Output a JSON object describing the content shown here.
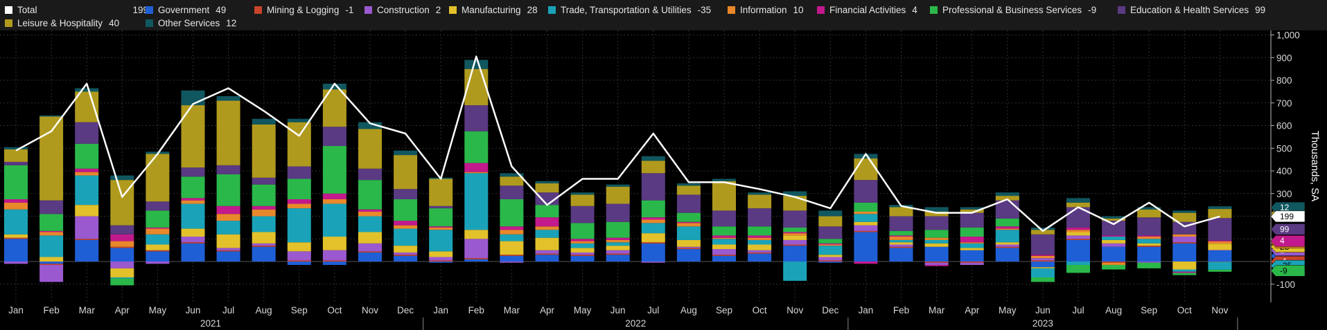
{
  "chart_data": {
    "type": "bar",
    "stacked": true,
    "ylabel": "Thousands, SA",
    "ylim": [
      -180,
      1020
    ],
    "yticks": [
      -100,
      100,
      200,
      300,
      400,
      500,
      600,
      700,
      800,
      900,
      1000
    ],
    "ytick_labels": [
      "-100",
      "100",
      "200",
      "300",
      "400",
      "500",
      "600",
      "700",
      "800",
      "900",
      "1,000"
    ],
    "grid": true,
    "legend_position": "top",
    "categories": [
      "Jan",
      "Feb",
      "Mar",
      "Apr",
      "May",
      "Jun",
      "Jul",
      "Aug",
      "Sep",
      "Oct",
      "Nov",
      "Dec",
      "Jan",
      "Feb",
      "Mar",
      "Apr",
      "May",
      "Jun",
      "Jul",
      "Aug",
      "Sep",
      "Oct",
      "Nov",
      "Dec",
      "Jan",
      "Feb",
      "Mar",
      "Apr",
      "May",
      "Jun",
      "Jul",
      "Aug",
      "Sep",
      "Oct",
      "Nov"
    ],
    "year_labels": [
      {
        "label": "2021",
        "start": 0,
        "end": 11
      },
      {
        "label": "2022",
        "start": 12,
        "end": 23
      },
      {
        "label": "2023",
        "start": 24,
        "end": 34
      }
    ],
    "total": {
      "name": "Total",
      "latest": "199",
      "color": "#ffffff",
      "values": [
        490,
        575,
        785,
        285,
        475,
        695,
        765,
        665,
        555,
        785,
        610,
        565,
        365,
        905,
        420,
        250,
        365,
        365,
        565,
        350,
        350,
        320,
        285,
        235,
        475,
        245,
        215,
        215,
        275,
        135,
        240,
        165,
        260,
        155,
        199
      ]
    },
    "series": [
      {
        "name": "Government",
        "latest": "49",
        "color": "#1f5fd6",
        "values": [
          100,
          -10,
          95,
          60,
          45,
          80,
          45,
          65,
          -15,
          -15,
          40,
          25,
          -5,
          10,
          25,
          30,
          25,
          30,
          80,
          55,
          25,
          35,
          70,
          -5,
          130,
          60,
          65,
          50,
          60,
          -25,
          95,
          65,
          65,
          80,
          49
        ]
      },
      {
        "name": "Mining & Logging",
        "latest": "-1",
        "color": "#c8442b",
        "values": [
          5,
          -5,
          5,
          5,
          5,
          5,
          5,
          5,
          5,
          5,
          5,
          5,
          5,
          5,
          5,
          5,
          5,
          5,
          5,
          5,
          5,
          5,
          5,
          5,
          5,
          5,
          -5,
          -5,
          5,
          5,
          5,
          -5,
          5,
          5,
          -1
        ]
      },
      {
        "name": "Construction",
        "latest": "2",
        "color": "#9b59d0",
        "values": [
          -10,
          -75,
          100,
          -30,
          -10,
          25,
          10,
          10,
          40,
          45,
          35,
          10,
          15,
          85,
          -5,
          15,
          10,
          15,
          -5,
          5,
          25,
          10,
          20,
          15,
          25,
          10,
          -10,
          -10,
          10,
          10,
          15,
          15,
          -5,
          25,
          2
        ]
      },
      {
        "name": "Manufacturing",
        "latest": "28",
        "color": "#e2c12b",
        "values": [
          15,
          20,
          50,
          -40,
          25,
          35,
          60,
          50,
          40,
          60,
          50,
          30,
          25,
          40,
          60,
          55,
          20,
          20,
          40,
          30,
          20,
          25,
          20,
          10,
          15,
          10,
          15,
          10,
          10,
          -5,
          15,
          15,
          10,
          -35,
          28
        ]
      },
      {
        "name": "Trade, Transportation & Utilities",
        "latest": "-35",
        "color": "#1aa3b8",
        "values": [
          110,
          95,
          130,
          -5,
          45,
          110,
          60,
          70,
          150,
          145,
          70,
          75,
          95,
          250,
          30,
          35,
          20,
          15,
          45,
          60,
          25,
          20,
          -85,
          40,
          35,
          10,
          15,
          20,
          55,
          -40,
          -15,
          15,
          20,
          -10,
          -35
        ]
      },
      {
        "name": "Information",
        "latest": "10",
        "color": "#e8882b",
        "values": [
          30,
          15,
          15,
          25,
          25,
          15,
          30,
          30,
          20,
          20,
          20,
          15,
          10,
          5,
          20,
          15,
          10,
          10,
          15,
          15,
          5,
          10,
          10,
          5,
          10,
          15,
          10,
          5,
          5,
          10,
          10,
          -10,
          10,
          10,
          10
        ]
      },
      {
        "name": "Financial Activities",
        "latest": "4",
        "color": "#c2198c",
        "values": [
          15,
          5,
          15,
          30,
          5,
          10,
          35,
          15,
          20,
          25,
          10,
          20,
          5,
          40,
          15,
          40,
          10,
          10,
          10,
          5,
          10,
          10,
          5,
          5,
          -10,
          5,
          -5,
          25,
          10,
          5,
          10,
          5,
          5,
          -5,
          4
        ]
      },
      {
        "name": "Professional & Business Services",
        "latest": "-9",
        "color": "#2bb84a",
        "values": [
          150,
          75,
          110,
          -30,
          75,
          95,
          140,
          95,
          90,
          210,
          130,
          95,
          80,
          140,
          120,
          55,
          70,
          70,
          75,
          40,
          40,
          40,
          20,
          20,
          40,
          20,
          35,
          40,
          35,
          -20,
          -35,
          -20,
          -25,
          -10,
          -9
        ]
      },
      {
        "name": "Education & Health Services",
        "latest": "99",
        "color": "#5a3a82",
        "values": [
          15,
          60,
          95,
          40,
          40,
          40,
          40,
          30,
          55,
          85,
          50,
          45,
          10,
          115,
          60,
          55,
          75,
          80,
          120,
          80,
          70,
          80,
          75,
          55,
          100,
          65,
          60,
          65,
          80,
          90,
          90,
          65,
          80,
          55,
          99
        ]
      },
      {
        "name": "Leisure & Hospitality",
        "latest": "40",
        "color": "#b09a1e",
        "values": [
          55,
          370,
          135,
          200,
          210,
          275,
          285,
          235,
          195,
          165,
          175,
          150,
          120,
          160,
          40,
          40,
          50,
          75,
          55,
          40,
          130,
          60,
          65,
          45,
          95,
          40,
          20,
          15,
          20,
          20,
          20,
          10,
          35,
          40,
          40
        ]
      },
      {
        "name": "Other Services",
        "latest": "12",
        "color": "#10575f",
        "values": [
          10,
          5,
          15,
          20,
          10,
          65,
          20,
          25,
          15,
          25,
          30,
          20,
          5,
          40,
          15,
          10,
          10,
          10,
          20,
          10,
          10,
          10,
          20,
          25,
          20,
          10,
          20,
          10,
          15,
          10,
          20,
          10,
          10,
          10,
          12
        ]
      }
    ]
  }
}
